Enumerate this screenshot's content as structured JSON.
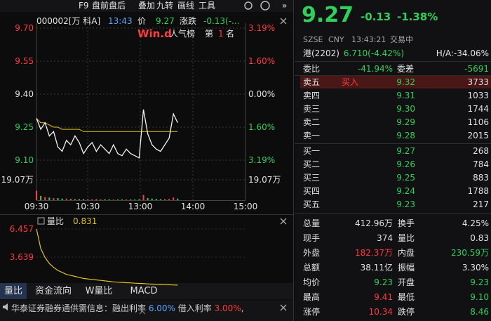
{
  "toolbar": {
    "items": [
      "F9",
      "盘前盘后",
      "叠加",
      "九转",
      "画线",
      "工具"
    ],
    "more": "»"
  },
  "chart_header": {
    "code": "000002[万 科A]",
    "time": "13:43",
    "price_label": "价",
    "price": "9.27",
    "change_label": "涨跌",
    "change": "-0.13(-..."
  },
  "badge": {
    "brand": "Win.d",
    "rank_label": "人气榜",
    "rank_prefix": "第",
    "rank": "1",
    "rank_suffix": "名"
  },
  "price_axis": {
    "ticks": [
      {
        "value": 9.7,
        "label": "9.70"
      },
      {
        "value": 9.55,
        "label": "9.55"
      },
      {
        "value": 9.4,
        "label": "9.40"
      },
      {
        "value": 9.25,
        "label": "9.25"
      },
      {
        "value": 9.1,
        "label": "9.10"
      }
    ],
    "pct_labels": [
      "3.19%",
      "1.60%",
      "0.00%",
      "1.60%",
      "3.19%"
    ]
  },
  "volume_axis": {
    "tick": {
      "value": 19.07,
      "label": "19.07万"
    },
    "right_label": "19.07万"
  },
  "time_labels": [
    "09:30",
    "10:30",
    "13:00",
    "14:00",
    "15:00"
  ],
  "intraday": {
    "price": [
      9.29,
      9.24,
      9.27,
      9.21,
      9.23,
      9.16,
      9.14,
      9.19,
      9.17,
      9.21,
      9.18,
      9.13,
      9.16,
      9.18,
      9.14,
      9.17,
      9.15,
      9.13,
      9.17,
      9.13,
      9.12,
      9.15,
      9.13,
      9.12,
      9.11,
      9.33,
      9.22,
      9.17,
      9.15,
      9.14,
      9.17,
      9.2,
      9.31,
      9.27
    ],
    "average": [
      9.29,
      9.27,
      9.27,
      9.26,
      9.25,
      9.25,
      9.24,
      9.24,
      9.24,
      9.24,
      9.24,
      9.23,
      9.23,
      9.23,
      9.23,
      9.23,
      9.23,
      9.23,
      9.23,
      9.23,
      9.23,
      9.23,
      9.23,
      9.23,
      9.23,
      9.23,
      9.23,
      9.23,
      9.23,
      9.23,
      9.23,
      9.23,
      9.23,
      9.23
    ],
    "volume": [
      9,
      4,
      3,
      2.5,
      2,
      2,
      1.5,
      1.5,
      1.2,
      1.2,
      1,
      1,
      1,
      0.9,
      0.9,
      0.8,
      0.8,
      0.8,
      0.7,
      0.7,
      0.7,
      0.8,
      0.7,
      0.7,
      0.9,
      5,
      2,
      1.5,
      1.2,
      1,
      1,
      1.2,
      2.5,
      1.5
    ]
  },
  "ratio_panel": {
    "label": "量比",
    "value": "0.831",
    "ticks": [
      {
        "value": 6.457,
        "label": "6.457"
      },
      {
        "value": 3.639,
        "label": "3.639"
      }
    ],
    "series": [
      6.457,
      4.5,
      3.6,
      3.0,
      2.6,
      2.3,
      2.1,
      1.9,
      1.8,
      1.7,
      1.6,
      1.5,
      1.45,
      1.4,
      1.35,
      1.3,
      1.25,
      1.2,
      1.15,
      1.12,
      1.1,
      1.07,
      1.05,
      1.02,
      1.0,
      0.98,
      0.95,
      0.93,
      0.91,
      0.89,
      0.87,
      0.86,
      0.84,
      0.831
    ]
  },
  "tabs": [
    "量比",
    "资金流向",
    "W量比",
    "MACD"
  ],
  "ticker": [
    "华泰证券融券通供需信息：融出利率 ",
    "6.00%",
    " 借入利率 ",
    "3.00%",
    ","
  ],
  "quote": {
    "price": "9.27",
    "change": "-0.13",
    "pct": "-1.38%",
    "info": [
      "SZSE",
      "CNY",
      "13:43:21",
      "交易中"
    ],
    "hk_label": "港(2202)",
    "hk_price": "6.710(-4.42%)",
    "ha": "H/A:-34.06%",
    "ratio_label": "委比",
    "ratio": "-41.94%",
    "diff_label": "委差",
    "diff": "-5691"
  },
  "order_book": {
    "sells": [
      {
        "label": "卖五",
        "tag": "买入",
        "price": "9.32",
        "volume": "3733"
      },
      {
        "label": "卖四",
        "price": "9.31",
        "volume": "1033"
      },
      {
        "label": "卖三",
        "price": "9.30",
        "volume": "1744"
      },
      {
        "label": "卖二",
        "price": "9.29",
        "volume": "1106"
      },
      {
        "label": "卖一",
        "price": "9.28",
        "volume": "2015"
      }
    ],
    "buys": [
      {
        "label": "买一",
        "price": "9.27",
        "volume": "268"
      },
      {
        "label": "买二",
        "price": "9.26",
        "volume": "784"
      },
      {
        "label": "买三",
        "price": "9.25",
        "volume": "883"
      },
      {
        "label": "买四",
        "price": "9.24",
        "volume": "1788"
      },
      {
        "label": "买五",
        "price": "9.23",
        "volume": "217"
      }
    ]
  },
  "stats": [
    [
      "总量",
      "412.96万",
      "换手",
      "4.25%"
    ],
    [
      "现手",
      "374",
      "量比",
      "0.83"
    ],
    [
      "外盘",
      "182.37万",
      "内盘",
      "230.59万"
    ],
    [
      "总额",
      "38.11亿",
      "振幅",
      "3.30%"
    ],
    [
      "均价",
      "9.23",
      "开盘",
      "9.23"
    ],
    [
      "最高",
      "9.41",
      "最低",
      "9.10"
    ],
    [
      "涨停",
      "10.34",
      "跌停",
      "8.46"
    ]
  ]
}
